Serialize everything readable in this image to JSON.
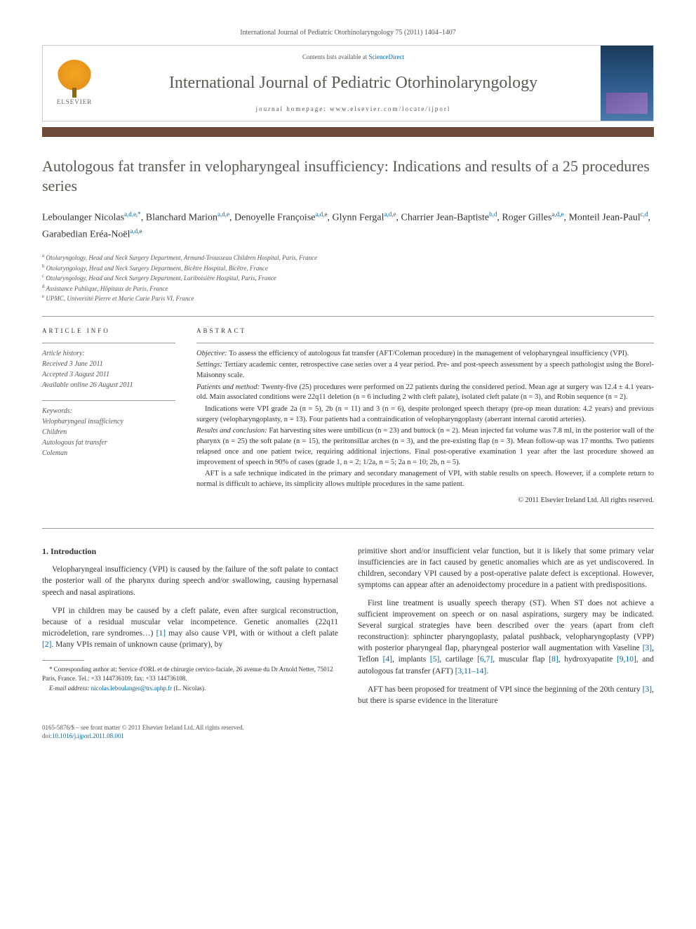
{
  "journal_ref": "International Journal of Pediatric Otorhinolaryngology 75 (2011) 1404–1407",
  "header": {
    "contents_prefix": "Contents lists available at ",
    "contents_link": "ScienceDirect",
    "journal_title": "International Journal of Pediatric Otorhinolaryngology",
    "homepage_prefix": "journal homepage: ",
    "homepage_url": "www.elsevier.com/locate/ijporl",
    "elsevier": "ELSEVIER"
  },
  "title": "Autologous fat transfer in velopharyngeal insufficiency: Indications and results of a 25 procedures series",
  "authors_html": "Leboulanger Nicolas|a,d,e,*|, Blanchard Marion|a,d,e|, Denoyelle Françoise|a,d,e|, Glynn Fergal|a,d,e|, Charrier Jean-Baptiste|b,d|, Roger Gilles|a,d,e|, Monteil Jean-Paul|c,d|, Garabedian Eréa-Noël|a,d,e|",
  "affiliations": [
    {
      "sup": "a",
      "text": "Otolaryngology, Head and Neck Surgery Department, Armand-Trousseau Children Hospital, Paris, France"
    },
    {
      "sup": "b",
      "text": "Otolaryngology, Head and Neck Surgery Department, Bicêtre Hospital, Bicêtre, France"
    },
    {
      "sup": "c",
      "text": "Otolaryngology, Head and Neck Surgery Department, Lariboisière Hospital, Paris, France"
    },
    {
      "sup": "d",
      "text": "Assistance Publique, Hôpitaux de Paris, France"
    },
    {
      "sup": "e",
      "text": "UPMC, Université Pierre et Marie Curie Paris VI, France"
    }
  ],
  "article_info": {
    "heading": "ARTICLE INFO",
    "history_label": "Article history:",
    "received": "Received 3 June 2011",
    "accepted": "Accepted 3 August 2011",
    "online": "Available online 26 August 2011",
    "keywords_label": "Keywords:",
    "keywords": [
      "Velopharyngeal insufficiency",
      "Children",
      "Autologous fat transfer",
      "Coleman"
    ]
  },
  "abstract": {
    "heading": "ABSTRACT",
    "objective_label": "Objective:",
    "objective": " To assess the efficiency of autologous fat transfer (AFT/Coleman procedure) in the management of velopharyngeal insufficiency (VPI).",
    "settings_label": "Settings:",
    "settings": " Tertiary academic center, retrospective case series over a 4 year period. Pre- and post-speech assessment by a speech pathologist using the Borel-Maisonny scale.",
    "patients_label": "Patients and method:",
    "patients": " Twenty-five (25) procedures were performed on 22 patients during the considered period. Mean age at surgery was 12.4 ± 4.1 years-old. Main associated conditions were 22q11 deletion (n = 6 including 2 with cleft palate), isolated cleft palate (n = 3), and Robin sequence (n = 2).",
    "indications": "Indications were VPI grade 2a (n = 5), 2b (n = 11) and 3 (n = 6), despite prolonged speech therapy (pre-op mean duration: 4.2 years) and previous surgery (velopharyngoplasty, n = 13). Four patients had a contraindication of velopharyngoplasty (aberrant internal carotid arteries).",
    "results_label": "Results and conclusion:",
    "results": " Fat harvesting sites were umbilicus (n = 23) and buttock (n = 2). Mean injected fat volume was 7.8 ml, in the posterior wall of the pharynx (n = 25) the soft palate (n = 15), the peritonsillar arches (n = 3), and the pre-existing flap (n = 3). Mean follow-up was 17 months. Two patients relapsed once and one patient twice, requiring additional injections. Final post-operative examination 1 year after the last procedure showed an improvement of speech in 90% of cases (grade 1, n = 2; 1/2a, n = 5; 2a n = 10; 2b, n = 5).",
    "conclusion": "AFT is a safe technique indicated in the primary and secondary management of VPI, with stable results on speech. However, if a complete return to normal is difficult to achieve, its simplicity allows multiple procedures in the same patient.",
    "copyright": "© 2011 Elsevier Ireland Ltd. All rights reserved."
  },
  "body": {
    "section1_heading": "1. Introduction",
    "p1": "Velopharyngeal insufficiency (VPI) is caused by the failure of the soft palate to contact the posterior wall of the pharynx during speech and/or swallowing, causing hypernasal speech and nasal aspirations.",
    "p2_a": "VPI in children may be caused by a cleft palate, even after surgical reconstruction, because of a residual muscular velar incompetence. Genetic anomalies (22q11 microdeletion, rare syndromes…) ",
    "p2_b": " may also cause VPI, with or without a cleft palate ",
    "p2_c": ". Many VPIs remain of unknown cause (primary), by",
    "p3": "primitive short and/or insufficient velar function, but it is likely that some primary velar insufficiencies are in fact caused by genetic anomalies which are as yet undiscovered. In children, secondary VPI caused by a post-operative palate defect is exceptional. However, symptoms can appear after an adenoidectomy procedure in a patient with predispositions.",
    "p4_a": "First line treatment is usually speech therapy (ST). When ST does not achieve a sufficient improvement on speech or on nasal aspirations, surgery may be indicated. Several surgical strategies have been described over the years (apart from cleft reconstruction): sphincter pharyngoplasty, palatal pushback, velopharyngoplasty (VPP) with posterior pharyngeal flap, pharyngeal posterior wall augmentation with Vaseline ",
    "p4_b": ", Teflon ",
    "p4_c": ", implants ",
    "p4_d": ", cartilage ",
    "p4_e": ", muscular flap ",
    "p4_f": ", hydroxyapatite ",
    "p4_g": ", and autologous fat transfer (AFT) ",
    "p4_h": ".",
    "p5_a": "AFT has been proposed for treatment of VPI since the beginning of the 20th century ",
    "p5_b": ", but there is sparse evidence in the literature",
    "cites": {
      "c1": "[1]",
      "c2": "[2]",
      "c3": "[3]",
      "c4": "[4]",
      "c5": "[5]",
      "c67": "[6,7]",
      "c8": "[8]",
      "c910": "[9,10]",
      "c31114": "[3,11–14]",
      "c3b": "[3]"
    }
  },
  "footnote": {
    "corr_label": "* Corresponding author at: ",
    "corr": "Service d'ORL et de chirurgie cervico-faciale, 26 avenue du Dr Arnold Netter, 75012 Paris, France. Tel.: +33 144736109; fax: +33 144736108.",
    "email_label": "E-mail address: ",
    "email": "nicolas.leboulanger@trs.aphp.fr",
    "email_suffix": " (L. Nicolas)."
  },
  "bottom": {
    "issn": "0165-5876/$ – see front matter © 2011 Elsevier Ireland Ltd. All rights reserved.",
    "doi_label": "doi:",
    "doi": "10.1016/j.ijporl.2011.08.001"
  }
}
